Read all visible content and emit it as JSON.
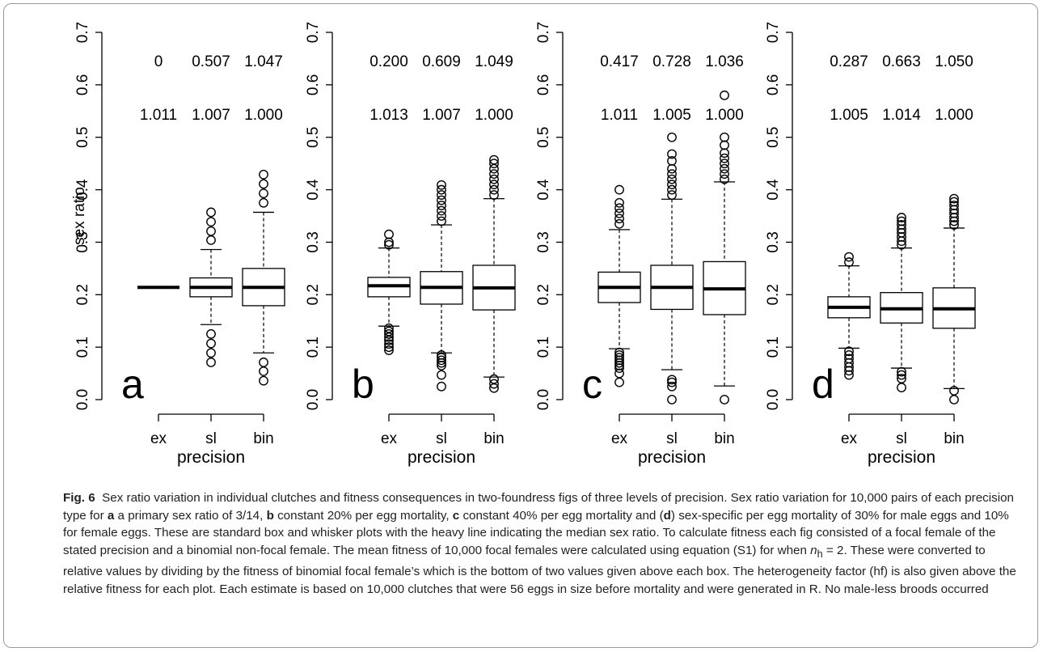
{
  "chart_data": [
    {
      "type": "box",
      "panel_letter": "a",
      "xlabel": "precision",
      "ylabel": "sex ratio",
      "ylim": [
        0.0,
        0.7
      ],
      "yticks": [
        "0.0",
        "0.1",
        "0.2",
        "0.3",
        "0.4",
        "0.5",
        "0.6",
        "0.7"
      ],
      "categories": [
        "ex",
        "sl",
        "bin"
      ],
      "hf": [
        "0",
        "0.507",
        "1.047"
      ],
      "relative_fitness": [
        "1.011",
        "1.007",
        "1.000"
      ],
      "boxes": [
        {
          "median": 0.214,
          "q1": 0.214,
          "q3": 0.214,
          "whisker_low": 0.214,
          "whisker_high": 0.214,
          "outliers": []
        },
        {
          "median": 0.214,
          "q1": 0.196,
          "q3": 0.232,
          "whisker_low": 0.143,
          "whisker_high": 0.286,
          "outliers": [
            0.071,
            0.089,
            0.107,
            0.125,
            0.304,
            0.321,
            0.339,
            0.357
          ]
        },
        {
          "median": 0.214,
          "q1": 0.179,
          "q3": 0.25,
          "whisker_low": 0.089,
          "whisker_high": 0.357,
          "outliers": [
            0.036,
            0.054,
            0.071,
            0.375,
            0.393,
            0.411,
            0.429
          ]
        }
      ]
    },
    {
      "type": "box",
      "panel_letter": "b",
      "xlabel": "precision",
      "ylim": [
        0.0,
        0.7
      ],
      "yticks": [
        "0.0",
        "0.1",
        "0.2",
        "0.3",
        "0.4",
        "0.5",
        "0.6",
        "0.7"
      ],
      "categories": [
        "ex",
        "sl",
        "bin"
      ],
      "hf": [
        "0.200",
        "0.609",
        "1.049"
      ],
      "relative_fitness": [
        "1.013",
        "1.007",
        "1.000"
      ],
      "boxes": [
        {
          "median": 0.217,
          "q1": 0.196,
          "q3": 0.233,
          "whisker_low": 0.14,
          "whisker_high": 0.289,
          "outliers": [
            0.094,
            0.1,
            0.106,
            0.113,
            0.119,
            0.125,
            0.13,
            0.136,
            0.295,
            0.3,
            0.315
          ]
        },
        {
          "median": 0.214,
          "q1": 0.182,
          "q3": 0.244,
          "whisker_low": 0.089,
          "whisker_high": 0.333,
          "outliers": [
            0.025,
            0.047,
            0.065,
            0.07,
            0.075,
            0.08,
            0.085,
            0.34,
            0.35,
            0.36,
            0.37,
            0.38,
            0.39,
            0.4,
            0.409
          ]
        },
        {
          "median": 0.213,
          "q1": 0.171,
          "q3": 0.256,
          "whisker_low": 0.043,
          "whisker_high": 0.383,
          "outliers": [
            0.022,
            0.03,
            0.039,
            0.39,
            0.4,
            0.41,
            0.42,
            0.43,
            0.44,
            0.45,
            0.457
          ]
        }
      ]
    },
    {
      "type": "box",
      "panel_letter": "c",
      "xlabel": "precision",
      "ylim": [
        0.0,
        0.7
      ],
      "yticks": [
        "0.0",
        "0.1",
        "0.2",
        "0.3",
        "0.4",
        "0.5",
        "0.6",
        "0.7"
      ],
      "categories": [
        "ex",
        "sl",
        "bin"
      ],
      "hf": [
        "0.417",
        "0.728",
        "1.036"
      ],
      "relative_fitness": [
        "1.011",
        "1.005",
        "1.000"
      ],
      "boxes": [
        {
          "median": 0.214,
          "q1": 0.185,
          "q3": 0.243,
          "whisker_low": 0.097,
          "whisker_high": 0.324,
          "outliers": [
            0.033,
            0.05,
            0.06,
            0.065,
            0.07,
            0.075,
            0.08,
            0.085,
            0.09,
            0.335,
            0.345,
            0.355,
            0.365,
            0.375,
            0.4
          ]
        },
        {
          "median": 0.214,
          "q1": 0.172,
          "q3": 0.256,
          "whisker_low": 0.057,
          "whisker_high": 0.382,
          "outliers": [
            0.0,
            0.025,
            0.033,
            0.038,
            0.39,
            0.4,
            0.41,
            0.42,
            0.43,
            0.44,
            0.455,
            0.468,
            0.5
          ]
        },
        {
          "median": 0.211,
          "q1": 0.162,
          "q3": 0.263,
          "whisker_low": 0.026,
          "whisker_high": 0.415,
          "outliers": [
            0.0,
            0.42,
            0.43,
            0.44,
            0.45,
            0.46,
            0.47,
            0.485,
            0.5,
            0.58
          ]
        }
      ]
    },
    {
      "type": "box",
      "panel_letter": "d",
      "xlabel": "precision",
      "ylim": [
        0.0,
        0.7
      ],
      "yticks": [
        "0.0",
        "0.1",
        "0.2",
        "0.3",
        "0.4",
        "0.5",
        "0.6",
        "0.7"
      ],
      "categories": [
        "ex",
        "sl",
        "bin"
      ],
      "hf": [
        "0.287",
        "0.663",
        "1.050"
      ],
      "relative_fitness": [
        "1.005",
        "1.014",
        "1.000"
      ],
      "boxes": [
        {
          "median": 0.176,
          "q1": 0.156,
          "q3": 0.196,
          "whisker_low": 0.098,
          "whisker_high": 0.255,
          "outliers": [
            0.047,
            0.055,
            0.062,
            0.07,
            0.078,
            0.085,
            0.092,
            0.262,
            0.272
          ]
        },
        {
          "median": 0.173,
          "q1": 0.146,
          "q3": 0.204,
          "whisker_low": 0.06,
          "whisker_high": 0.289,
          "outliers": [
            0.023,
            0.04,
            0.047,
            0.053,
            0.295,
            0.302,
            0.31,
            0.318,
            0.325,
            0.333,
            0.34,
            0.347
          ]
        },
        {
          "median": 0.173,
          "q1": 0.136,
          "q3": 0.213,
          "whisker_low": 0.021,
          "whisker_high": 0.327,
          "outliers": [
            0.0,
            0.017,
            0.333,
            0.34,
            0.347,
            0.355,
            0.362,
            0.37,
            0.377,
            0.383
          ]
        }
      ]
    }
  ],
  "caption": {
    "fig_label": "Fig. 6",
    "t1": "Sex ratio variation in individual clutches and fitness consequences in two-foundress figs of three levels of precision. Sex ratio variation for 10,000 pairs of each precision type for ",
    "a": "a",
    "t2": " a primary sex ratio of 3/14, ",
    "b": "b",
    "t3": " constant 20% per egg mortality, ",
    "c": "c",
    "t4": " constant 40% per egg mortality and (",
    "d": "d",
    "t5": ") sex-specific per egg mortality of 30% for male eggs and 10% for female eggs. These are standard box and whisker plots with the heavy line indicating the median sex ratio. To calculate fitness each fig consisted of a focal female of the stated precision and a binomial non-focal female. The mean fitness of 10,000 focal females were calculated using equation (S1) for when ",
    "n_var": "n",
    "n_sub": "h",
    "n_eq": " = 2",
    "t6": ". These were converted to relative values by dividing by the fitness of binomial focal female’s which is the bottom of two values given above each box. The heterogeneity factor (hf) is also given above the relative fitness for each plot. Each estimate is based on 10,000 clutches that were 56 eggs in size before mortality and were generated in R. No male-less broods occurred"
  }
}
